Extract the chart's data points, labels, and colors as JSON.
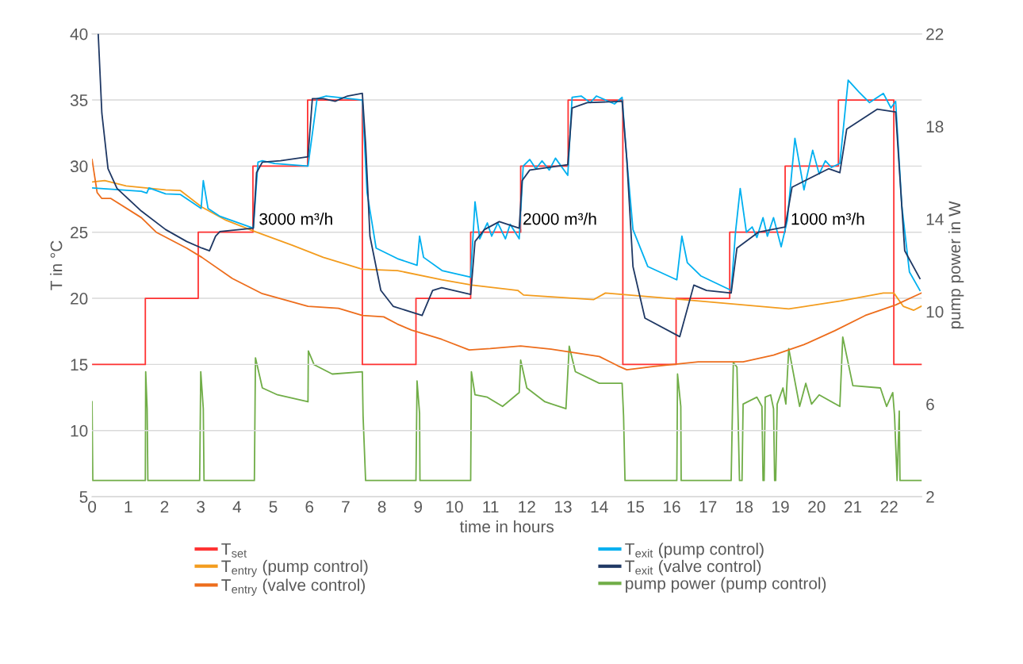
{
  "chart_data": {
    "type": "line",
    "xlabel": "time in hours",
    "ylabel": "T in °C",
    "y2label": "pump power in W",
    "xlim": [
      0,
      22.9
    ],
    "xticks": [
      0,
      1,
      2,
      3,
      4,
      5,
      6,
      7,
      8,
      9,
      10,
      11,
      12,
      13,
      14,
      15,
      16,
      17,
      18,
      19,
      20,
      21,
      22
    ],
    "ylim": [
      5,
      40
    ],
    "yticks": [
      5,
      10,
      15,
      20,
      25,
      30,
      35,
      40
    ],
    "y2lim": [
      2,
      22
    ],
    "y2ticks": [
      2,
      6,
      10,
      14,
      18,
      22
    ],
    "grid": "y",
    "legend": "bottom",
    "line_style": "solid",
    "marker": "none",
    "annotations": [
      "3000 m³/h",
      "2000 m³/h",
      "1000 m³/h"
    ],
    "series": [
      {
        "name": "T$_{set}$",
        "type": "step",
        "color": "#ff3333",
        "x": [
          0,
          1.47,
          2.93,
          4.44,
          5.95,
          7.46,
          8.94,
          10.45,
          11.83,
          13.14,
          14.65,
          16.12,
          17.6,
          19.13,
          20.6,
          22.13,
          22.9
        ],
        "values": [
          15,
          20,
          25,
          30,
          35,
          15,
          20,
          25,
          30,
          35,
          15,
          20,
          25,
          30,
          35,
          15,
          15
        ]
      },
      {
        "name": "T$_{entry}$ (pump control)",
        "color": "#f39c1e",
        "x": [
          0,
          0.35,
          0.94,
          2.03,
          2.44,
          3.03,
          3.7,
          4.45,
          5.54,
          6.38,
          7.46,
          8.43,
          9.65,
          10.49,
          11.75,
          11.91,
          13.84,
          14.17,
          15.93,
          17.8,
          19.23,
          20.66,
          21.84,
          22.13,
          22.39,
          22.68,
          22.89
        ],
        "values": [
          28.8,
          28.9,
          28.5,
          28.2,
          28.15,
          26.9,
          25.9,
          25.1,
          24.0,
          23.1,
          22.2,
          22.1,
          21.4,
          21.0,
          20.6,
          20.25,
          19.9,
          20.4,
          20.0,
          19.55,
          19.2,
          19.8,
          20.4,
          20.4,
          19.4,
          19.1,
          19.4
        ]
      },
      {
        "name": "T$_{entry}$ (valve control)",
        "color": "#ed6d1c",
        "x": [
          0,
          0.14,
          0.27,
          0.52,
          1.36,
          1.77,
          2.61,
          3.03,
          3.87,
          4.7,
          5.96,
          6.8,
          7.46,
          8.05,
          8.43,
          8.82,
          9.65,
          10.41,
          10.99,
          11.83,
          12.67,
          14.0,
          14.51,
          14.76,
          15.51,
          16.73,
          17.97,
          18.81,
          19.65,
          20.5,
          21.34,
          22.18,
          22.89
        ],
        "values": [
          30.5,
          28.0,
          27.55,
          27.55,
          26.1,
          25.0,
          23.8,
          23.1,
          21.5,
          20.35,
          19.4,
          19.25,
          18.7,
          18.6,
          18.05,
          17.6,
          16.9,
          16.1,
          16.2,
          16.4,
          16.15,
          15.6,
          14.9,
          14.6,
          14.85,
          15.2,
          15.2,
          15.7,
          16.5,
          17.55,
          18.7,
          19.5,
          20.4
        ]
      },
      {
        "name": "T$_{exit}$ (pump control)",
        "color": "#00b0f0",
        "x": [
          0,
          1.36,
          1.51,
          1.57,
          2.03,
          2.44,
          3.01,
          3.07,
          3.2,
          3.53,
          4.45,
          4.58,
          4.7,
          5.04,
          5.96,
          6.21,
          6.46,
          7.46,
          7.59,
          7.84,
          8.43,
          8.97,
          9.04,
          9.15,
          9.66,
          10.45,
          10.57,
          10.7,
          10.91,
          11.03,
          11.2,
          11.41,
          11.54,
          11.79,
          11.9,
          12.08,
          12.25,
          12.42,
          12.62,
          12.79,
          13.13,
          13.25,
          13.5,
          13.75,
          13.92,
          14.42,
          14.63,
          14.76,
          14.93,
          15.34,
          16.14,
          16.28,
          16.43,
          16.8,
          17.64,
          17.76,
          17.89,
          18.06,
          18.22,
          18.35,
          18.52,
          18.64,
          18.81,
          19.02,
          19.19,
          19.4,
          19.65,
          19.89,
          20.07,
          20.24,
          20.41,
          20.64,
          20.87,
          21.17,
          21.46,
          21.84,
          22.05,
          22.18,
          22.35,
          22.56,
          22.85
        ],
        "values": [
          28.35,
          28.1,
          27.96,
          28.35,
          27.9,
          27.85,
          26.8,
          28.9,
          26.8,
          26.2,
          25.3,
          30.3,
          30.4,
          30.2,
          30.0,
          35.1,
          35.3,
          35.0,
          28.0,
          23.8,
          23.0,
          22.5,
          24.7,
          23.1,
          22.1,
          21.6,
          27.3,
          24.5,
          25.7,
          24.7,
          25.7,
          24.5,
          25.6,
          24.5,
          30.0,
          30.5,
          29.8,
          30.4,
          29.7,
          30.6,
          29.3,
          35.2,
          35.3,
          34.8,
          35.3,
          34.7,
          35.2,
          30.5,
          25.2,
          22.4,
          21.4,
          24.7,
          22.7,
          21.7,
          20.6,
          25.0,
          28.3,
          25.0,
          25.4,
          24.6,
          26.1,
          24.7,
          26.1,
          23.9,
          25.9,
          32.1,
          28.2,
          31.2,
          29.4,
          30.4,
          29.9,
          30.2,
          36.5,
          35.6,
          34.8,
          35.5,
          34.4,
          34.9,
          27.0,
          22.0,
          20.6
        ]
      },
      {
        "name": "T$_{exit}$ (valve control)",
        "color": "#1f3864",
        "x": [
          0.17,
          0.27,
          0.44,
          0.69,
          1.36,
          2.03,
          2.61,
          3.03,
          3.24,
          3.41,
          3.53,
          4.45,
          4.54,
          4.7,
          5.2,
          5.96,
          6.08,
          6.38,
          6.71,
          7.05,
          7.46,
          7.55,
          7.67,
          7.97,
          8.31,
          9.11,
          9.4,
          9.65,
          10.45,
          10.57,
          10.83,
          11.24,
          11.79,
          11.87,
          12.08,
          13.13,
          13.25,
          13.67,
          14.63,
          14.76,
          14.93,
          15.26,
          16.22,
          16.61,
          16.96,
          17.64,
          17.8,
          18.39,
          19.13,
          19.32,
          20.33,
          20.64,
          20.83,
          21.67,
          22.18,
          22.43,
          22.85
        ],
        "values": [
          40,
          34.0,
          29.8,
          28.3,
          26.6,
          25.2,
          24.3,
          23.8,
          23.6,
          24.7,
          25.05,
          25.3,
          29.5,
          30.3,
          30.4,
          30.7,
          35.1,
          35.1,
          34.9,
          35.3,
          35.5,
          31.7,
          24.7,
          20.6,
          19.4,
          18.7,
          20.6,
          20.8,
          20.3,
          24.3,
          25.2,
          25.8,
          25.3,
          28.9,
          29.7,
          30.1,
          34.4,
          34.8,
          34.9,
          30.5,
          22.4,
          18.5,
          17.1,
          21.0,
          20.6,
          20.4,
          23.8,
          25.0,
          25.4,
          28.4,
          29.8,
          29.5,
          32.8,
          34.3,
          34.1,
          23.6,
          21.5
        ]
      },
      {
        "name": "pump power (pump control)",
        "color": "#70ad47",
        "axis": "y2",
        "x": [
          0,
          0.02,
          1.47,
          1.48,
          1.52,
          1.54,
          2.97,
          3.0,
          3.07,
          3.09,
          4.48,
          4.51,
          4.7,
          5.12,
          5.96,
          5.97,
          6.13,
          6.63,
          7.46,
          7.48,
          7.55,
          8.94,
          8.97,
          9.04,
          9.05,
          10.45,
          10.47,
          10.57,
          10.91,
          11.33,
          11.79,
          11.83,
          12.0,
          12.5,
          13.08,
          13.17,
          13.34,
          14.0,
          14.63,
          14.67,
          14.71,
          16.14,
          16.16,
          16.25,
          16.26,
          17.64,
          17.7,
          17.8,
          17.87,
          17.94,
          17.97,
          18.35,
          18.49,
          18.52,
          18.55,
          18.58,
          18.73,
          18.81,
          18.84,
          18.87,
          18.91,
          19.07,
          19.15,
          19.23,
          19.53,
          19.7,
          19.86,
          20.07,
          20.64,
          20.72,
          21.0,
          21.76,
          21.93,
          22.1,
          22.15,
          22.22,
          22.28,
          22.3,
          22.89
        ],
        "values": [
          6.1,
          2.7,
          2.7,
          7.4,
          5.8,
          2.7,
          2.7,
          7.4,
          5.8,
          2.7,
          2.7,
          8.0,
          6.7,
          6.4,
          6.1,
          8.3,
          7.7,
          7.3,
          7.4,
          5.5,
          2.7,
          2.7,
          7.0,
          5.6,
          2.7,
          2.7,
          7.4,
          6.4,
          6.3,
          5.9,
          6.5,
          7.9,
          6.7,
          6.1,
          5.8,
          8.5,
          7.4,
          6.9,
          6.9,
          5.5,
          2.7,
          2.7,
          7.3,
          5.9,
          2.7,
          2.7,
          7.8,
          7.6,
          2.7,
          2.7,
          6.0,
          6.3,
          5.9,
          2.7,
          2.7,
          6.3,
          6.4,
          5.8,
          2.7,
          2.7,
          6.0,
          6.7,
          6.0,
          8.4,
          5.9,
          6.9,
          6.0,
          6.4,
          5.9,
          8.9,
          6.8,
          6.7,
          5.9,
          6.5,
          5.5,
          2.7,
          5.7,
          2.7,
          2.7
        ]
      }
    ]
  }
}
